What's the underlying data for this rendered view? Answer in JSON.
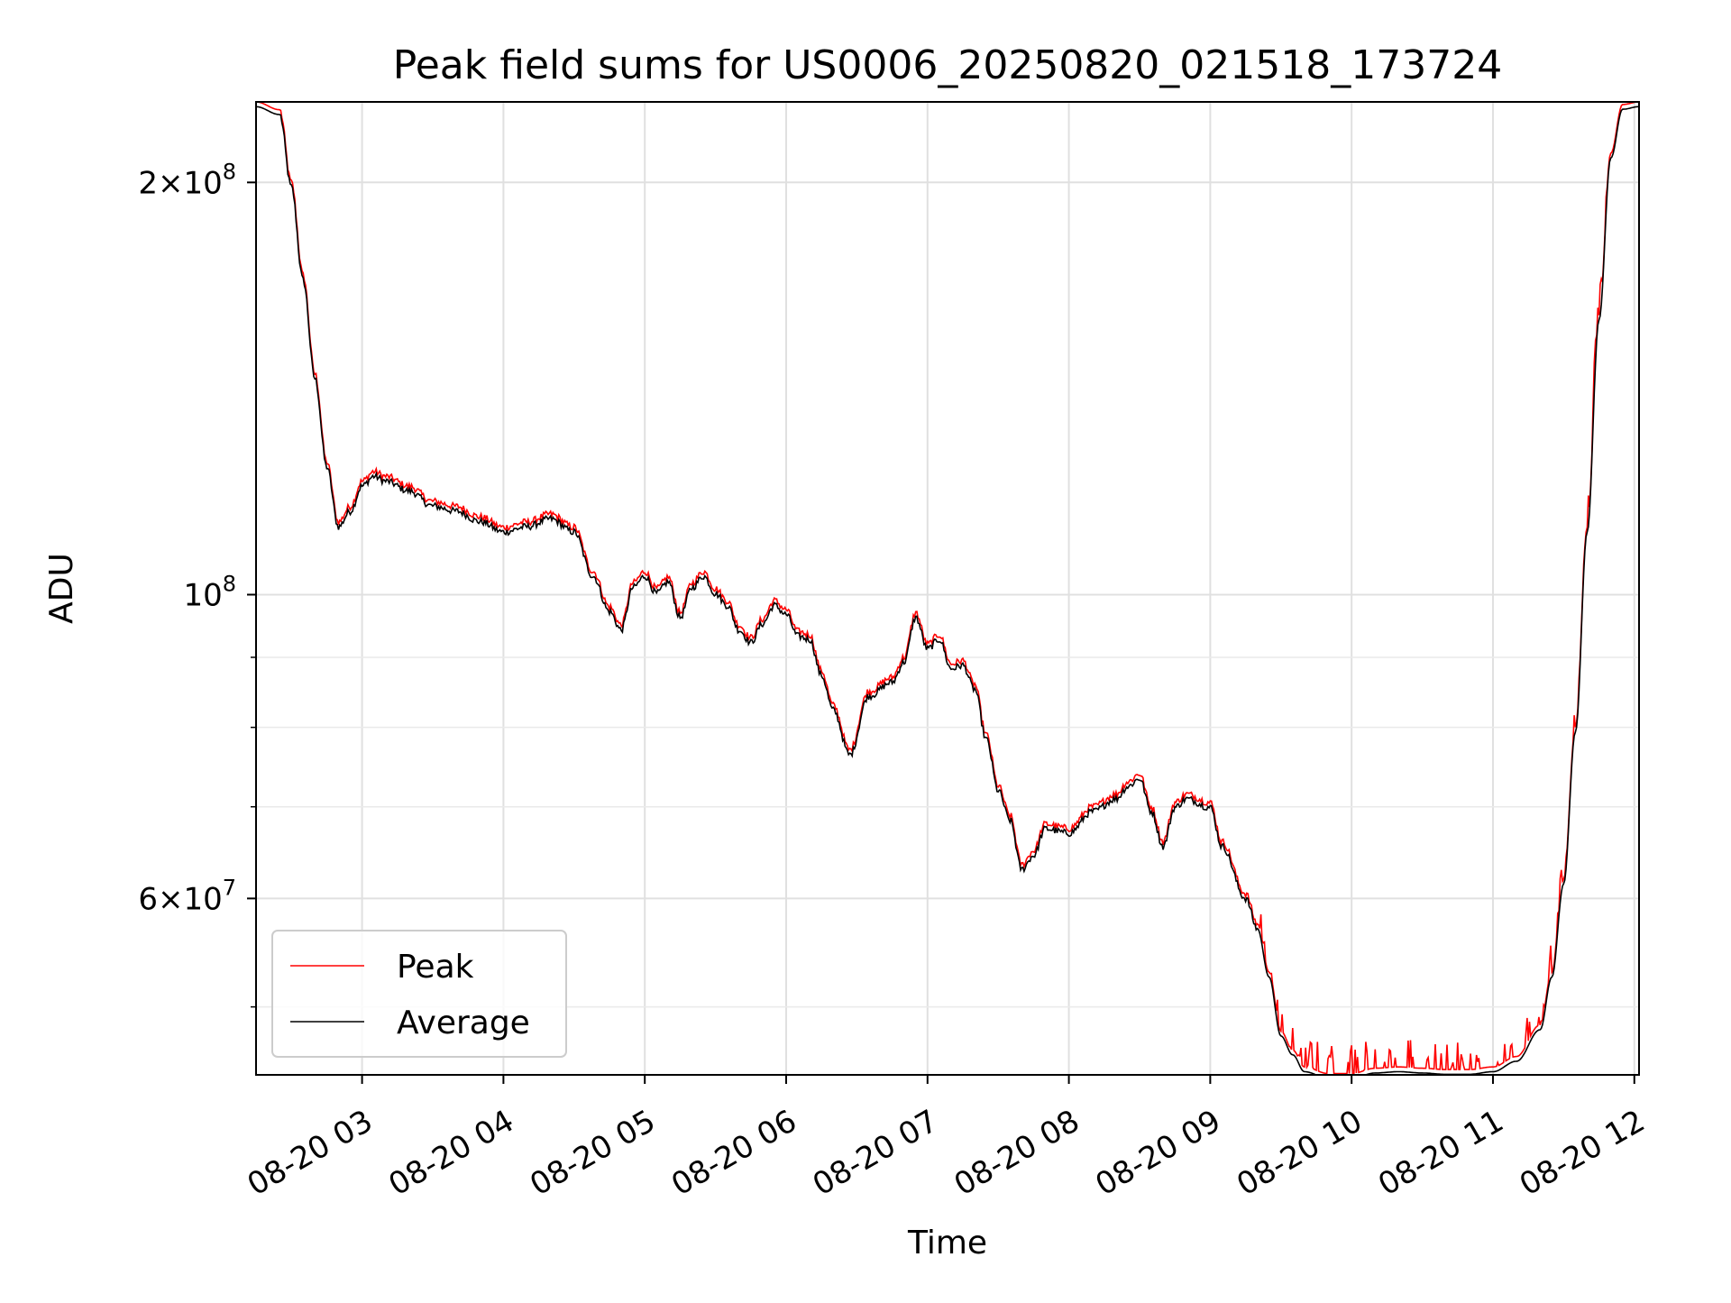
{
  "chart_data": {
    "type": "line",
    "title": "Peak field sums for US0006_20250820_021518_173724",
    "xlabel": "Time",
    "ylabel": "ADU",
    "x_scale": "time",
    "y_scale": "log",
    "xlim": [
      "2025-08-20 02:15",
      "2025-08-20 12:02"
    ],
    "ylim": [
      44600000,
      229000000
    ],
    "x_ticks": [
      {
        "value": "2025-08-20 03:00",
        "label": "08-20 03"
      },
      {
        "value": "2025-08-20 04:00",
        "label": "08-20 04"
      },
      {
        "value": "2025-08-20 05:00",
        "label": "08-20 05"
      },
      {
        "value": "2025-08-20 06:00",
        "label": "08-20 06"
      },
      {
        "value": "2025-08-20 07:00",
        "label": "08-20 07"
      },
      {
        "value": "2025-08-20 08:00",
        "label": "08-20 08"
      },
      {
        "value": "2025-08-20 09:00",
        "label": "08-20 09"
      },
      {
        "value": "2025-08-20 10:00",
        "label": "08-20 10"
      },
      {
        "value": "2025-08-20 11:00",
        "label": "08-20 11"
      },
      {
        "value": "2025-08-20 12:00",
        "label": "08-20 12"
      }
    ],
    "y_major_ticks": [
      {
        "value": 60000000,
        "base": "6",
        "exp": "7"
      },
      {
        "value": 100000000,
        "base": "",
        "exp": "8"
      },
      {
        "value": 200000000,
        "base": "2",
        "exp": "8"
      }
    ],
    "y_minor_ticks": [
      50000000,
      70000000,
      80000000,
      90000000
    ],
    "grid": true,
    "legend_position": "lower-left",
    "series": [
      {
        "name": "Peak",
        "color": "#ff0000",
        "spike_noise_from": "2025-08-20 09:20",
        "points": [
          [
            "2025-08-20 02:15",
            229000000
          ],
          [
            "2025-08-20 02:25",
            226000000
          ],
          [
            "2025-08-20 02:30",
            200000000
          ],
          [
            "2025-08-20 02:35",
            171000000
          ],
          [
            "2025-08-20 02:40",
            145000000
          ],
          [
            "2025-08-20 02:45",
            125000000
          ],
          [
            "2025-08-20 02:50",
            113000000
          ],
          [
            "2025-08-20 02:55",
            116000000
          ],
          [
            "2025-08-20 03:00",
            121000000
          ],
          [
            "2025-08-20 03:05",
            123000000
          ],
          [
            "2025-08-20 03:10",
            122000000
          ],
          [
            "2025-08-20 03:20",
            120000000
          ],
          [
            "2025-08-20 03:30",
            117000000
          ],
          [
            "2025-08-20 03:40",
            116000000
          ],
          [
            "2025-08-20 03:50",
            114000000
          ],
          [
            "2025-08-20 04:00",
            112000000
          ],
          [
            "2025-08-20 04:10",
            113000000
          ],
          [
            "2025-08-20 04:20",
            114500000
          ],
          [
            "2025-08-20 04:30",
            112000000
          ],
          [
            "2025-08-20 04:38",
            104000000
          ],
          [
            "2025-08-20 04:45",
            98000000
          ],
          [
            "2025-08-20 04:50",
            95000000
          ],
          [
            "2025-08-20 04:55",
            102000000
          ],
          [
            "2025-08-20 05:00",
            104000000
          ],
          [
            "2025-08-20 05:05",
            101000000
          ],
          [
            "2025-08-20 05:10",
            103000000
          ],
          [
            "2025-08-20 05:15",
            97000000
          ],
          [
            "2025-08-20 05:20",
            102000000
          ],
          [
            "2025-08-20 05:25",
            104000000
          ],
          [
            "2025-08-20 05:30",
            101000000
          ],
          [
            "2025-08-20 05:35",
            99000000
          ],
          [
            "2025-08-20 05:40",
            95000000
          ],
          [
            "2025-08-20 05:45",
            93000000
          ],
          [
            "2025-08-20 05:50",
            96000000
          ],
          [
            "2025-08-20 05:55",
            99000000
          ],
          [
            "2025-08-20 06:00",
            97500000
          ],
          [
            "2025-08-20 06:05",
            94000000
          ],
          [
            "2025-08-20 06:10",
            93500000
          ],
          [
            "2025-08-20 06:15",
            88000000
          ],
          [
            "2025-08-20 06:20",
            83000000
          ],
          [
            "2025-08-20 06:27",
            77000000
          ],
          [
            "2025-08-20 06:35",
            85000000
          ],
          [
            "2025-08-20 06:45",
            87000000
          ],
          [
            "2025-08-20 06:50",
            90000000
          ],
          [
            "2025-08-20 06:55",
            97000000
          ],
          [
            "2025-08-20 07:00",
            92000000
          ],
          [
            "2025-08-20 07:05",
            93500000
          ],
          [
            "2025-08-20 07:10",
            89000000
          ],
          [
            "2025-08-20 07:15",
            89500000
          ],
          [
            "2025-08-20 07:20",
            86000000
          ],
          [
            "2025-08-20 07:25",
            79000000
          ],
          [
            "2025-08-20 07:30",
            72500000
          ],
          [
            "2025-08-20 07:35",
            69000000
          ],
          [
            "2025-08-20 07:40",
            63500000
          ],
          [
            "2025-08-20 07:45",
            65000000
          ],
          [
            "2025-08-20 07:50",
            68000000
          ],
          [
            "2025-08-20 08:00",
            67500000
          ],
          [
            "2025-08-20 08:10",
            70000000
          ],
          [
            "2025-08-20 08:20",
            71500000
          ],
          [
            "2025-08-20 08:25",
            73000000
          ],
          [
            "2025-08-20 08:30",
            74000000
          ],
          [
            "2025-08-20 08:35",
            70000000
          ],
          [
            "2025-08-20 08:40",
            66000000
          ],
          [
            "2025-08-20 08:45",
            70500000
          ],
          [
            "2025-08-20 08:50",
            71500000
          ],
          [
            "2025-08-20 09:00",
            70500000
          ],
          [
            "2025-08-20 09:05",
            66000000
          ],
          [
            "2025-08-20 09:15",
            60500000
          ],
          [
            "2025-08-20 09:20",
            57500000
          ],
          [
            "2025-08-20 09:25",
            53000000
          ],
          [
            "2025-08-20 09:30",
            48000000
          ],
          [
            "2025-08-20 09:35",
            46500000
          ],
          [
            "2025-08-20 09:40",
            45200000
          ],
          [
            "2025-08-20 09:50",
            44700000
          ],
          [
            "2025-08-20 10:00",
            44700000
          ],
          [
            "2025-08-20 10:10",
            45100000
          ],
          [
            "2025-08-20 10:20",
            45200000
          ],
          [
            "2025-08-20 10:30",
            45100000
          ],
          [
            "2025-08-20 10:40",
            45000000
          ],
          [
            "2025-08-20 10:50",
            45000000
          ],
          [
            "2025-08-20 11:00",
            45200000
          ],
          [
            "2025-08-20 11:10",
            46000000
          ],
          [
            "2025-08-20 11:20",
            48500000
          ],
          [
            "2025-08-20 11:25",
            53000000
          ],
          [
            "2025-08-20 11:30",
            62000000
          ],
          [
            "2025-08-20 11:35",
            80000000
          ],
          [
            "2025-08-20 11:40",
            112000000
          ],
          [
            "2025-08-20 11:45",
            160000000
          ],
          [
            "2025-08-20 11:50",
            210000000
          ],
          [
            "2025-08-20 11:55",
            228000000
          ],
          [
            "2025-08-20 12:02",
            229000000
          ]
        ]
      },
      {
        "name": "Average",
        "color": "#000000",
        "same_as": "Peak",
        "offset_factor": 0.992
      }
    ]
  }
}
